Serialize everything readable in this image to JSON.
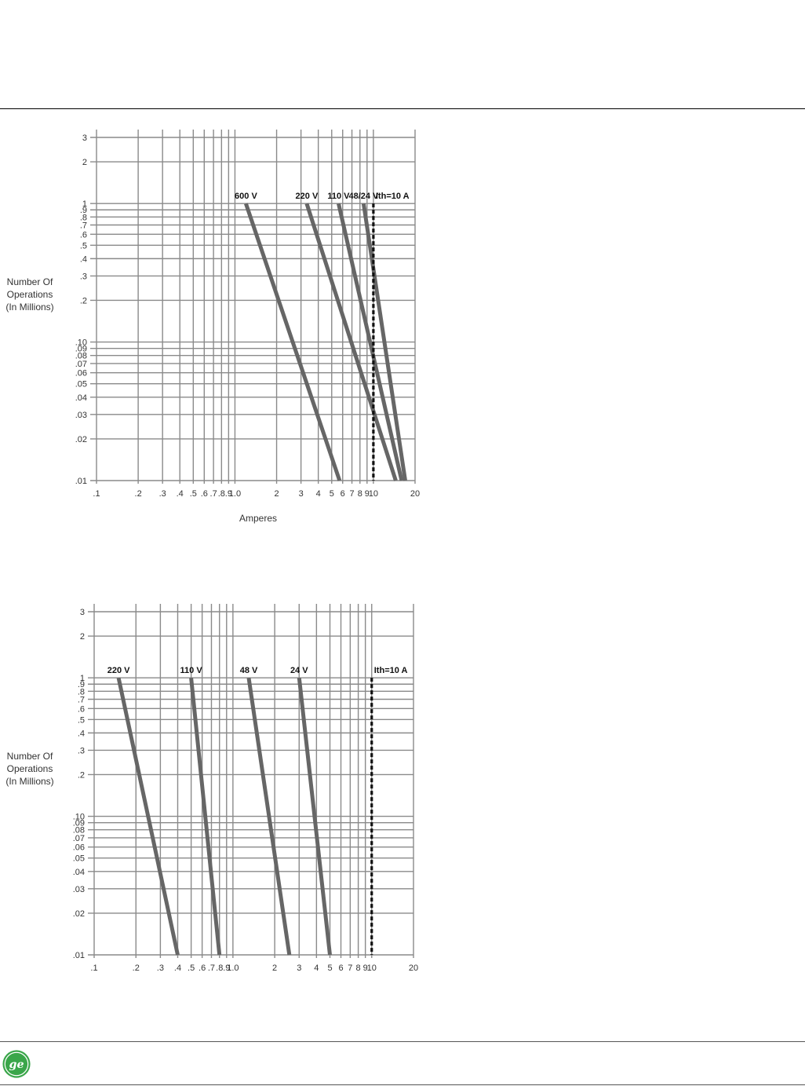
{
  "page": {
    "logo_alt": "GE monogram"
  },
  "chart_data": [
    {
      "type": "line",
      "title": "",
      "xlabel": "Amperes",
      "ylabel": "Number Of Operations (In Millions)",
      "xscale": "log",
      "yscale": "log",
      "xlim": [
        0.1,
        20
      ],
      "ylim": [
        0.01,
        3
      ],
      "grid": true,
      "x_ticks": [
        ".1",
        ".2",
        ".3",
        ".4",
        ".5",
        ".6",
        ".7",
        ".8",
        ".9",
        "1.0",
        "2",
        "3",
        "4",
        "5",
        "6",
        "7",
        "8",
        "9",
        "10",
        "20"
      ],
      "y_ticks": [
        ".01",
        ".02",
        ".03",
        ".04",
        ".05",
        ".06",
        ".07",
        ".08",
        ".09",
        ".10",
        ".2",
        ".3",
        ".4",
        ".5",
        ".6",
        ".7",
        ".8",
        ".9",
        "1",
        "2",
        "3"
      ],
      "series": [
        {
          "name": "600 V",
          "x": [
            1.2,
            5.7
          ],
          "y": [
            1.0,
            0.01
          ]
        },
        {
          "name": "220 V",
          "x": [
            3.3,
            14.5
          ],
          "y": [
            1.0,
            0.01
          ]
        },
        {
          "name": "110 V",
          "x": [
            5.6,
            16.0
          ],
          "y": [
            1.0,
            0.01
          ]
        },
        {
          "name": "48/24 V",
          "x": [
            8.5,
            17.0
          ],
          "y": [
            1.0,
            0.01
          ]
        }
      ],
      "reference_line": {
        "label": "Ith=10 A",
        "x": 10,
        "y_range": [
          0.01,
          1.0
        ]
      }
    },
    {
      "type": "line",
      "title": "",
      "xlabel": "",
      "ylabel": "Number Of Operations (In Millions)",
      "xscale": "log",
      "yscale": "log",
      "xlim": [
        0.1,
        20
      ],
      "ylim": [
        0.01,
        3
      ],
      "grid": true,
      "x_ticks": [
        ".1",
        ".2",
        ".3",
        ".4",
        ".5",
        ".6",
        ".7",
        ".8",
        ".9",
        "1.0",
        "2",
        "3",
        "4",
        "5",
        "6",
        "7",
        "8",
        "9",
        "10",
        "20"
      ],
      "y_ticks": [
        ".01",
        ".02",
        ".03",
        ".04",
        ".05",
        ".06",
        ".07",
        ".08",
        ".09",
        ".10",
        ".2",
        ".3",
        ".4",
        ".5",
        ".6",
        ".7",
        ".8",
        ".9",
        "1",
        "2",
        "3"
      ],
      "series": [
        {
          "name": "220 V",
          "x": [
            0.15,
            0.4
          ],
          "y": [
            1.0,
            0.01
          ]
        },
        {
          "name": "110 V",
          "x": [
            0.5,
            0.8
          ],
          "y": [
            1.0,
            0.01
          ]
        },
        {
          "name": "48 V",
          "x": [
            1.3,
            2.55
          ],
          "y": [
            1.0,
            0.01
          ]
        },
        {
          "name": "24 V",
          "x": [
            3.0,
            5.0
          ],
          "y": [
            1.0,
            0.01
          ]
        }
      ],
      "reference_line": {
        "label": "Ith=10 A",
        "x": 10,
        "y_range": [
          0.01,
          1.0
        ]
      }
    }
  ],
  "labels": {
    "ylabel_line1": "Number Of",
    "ylabel_line2": "Operations",
    "ylabel_line3": "(In Millions)"
  },
  "colors": {
    "grid": "#8a8a8a",
    "curve": "#666666",
    "reference": "#111111"
  }
}
